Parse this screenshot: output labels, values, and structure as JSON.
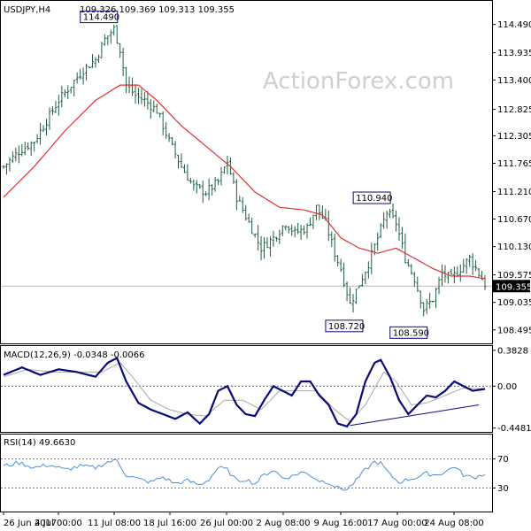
{
  "header": {
    "symbol": "USDJPY,H4",
    "ohlc": "109.326 109.369 109.313 109.355"
  },
  "watermark": "ActionForex.com",
  "colors": {
    "bars": "#1f5f3f",
    "ma": "#e03030",
    "macd_line": "#0a0a7a",
    "macd_signal": "#a8a8a8",
    "rsi": "#4a90d9",
    "price_line": "#b8b8b8",
    "label_box": "#0a0a7a"
  },
  "chart_data": [
    {
      "type": "ohlc",
      "panel": "price",
      "symbol": "USDJPY,H4",
      "ylim": [
        108.3,
        114.9
      ],
      "yticks": [
        "114.490",
        "113.935",
        "113.400",
        "112.825",
        "112.305",
        "111.765",
        "111.210",
        "110.670",
        "110.130",
        "109.575",
        "109.035",
        "108.495"
      ],
      "current_price": "109.355",
      "x_tick_labels": [
        "26 Jun 2017",
        "4 Jul 00:00",
        "11 Jul 08:00",
        "18 Jul 16:00",
        "26 Jul 00:00",
        "2 Aug 08:00",
        "9 Aug 16:00",
        "17 Aug 00:00",
        "24 Aug 08:00"
      ],
      "anchors_close": [
        [
          0,
          111.7
        ],
        [
          5,
          112.0
        ],
        [
          10,
          112.2
        ],
        [
          14,
          112.6
        ],
        [
          18,
          113.0
        ],
        [
          22,
          113.3
        ],
        [
          26,
          113.6
        ],
        [
          30,
          113.8
        ],
        [
          33,
          114.2
        ],
        [
          36,
          114.4
        ],
        [
          38,
          114.0
        ],
        [
          40,
          113.3
        ],
        [
          43,
          113.1
        ],
        [
          46,
          113.0
        ],
        [
          50,
          112.8
        ],
        [
          54,
          112.2
        ],
        [
          58,
          111.7
        ],
        [
          62,
          111.3
        ],
        [
          66,
          111.2
        ],
        [
          70,
          111.4
        ],
        [
          73,
          111.8
        ],
        [
          76,
          111.1
        ],
        [
          80,
          110.6
        ],
        [
          84,
          110.1
        ],
        [
          88,
          110.3
        ],
        [
          92,
          110.6
        ],
        [
          95,
          110.4
        ],
        [
          99,
          110.5
        ],
        [
          102,
          110.9
        ],
        [
          105,
          110.6
        ],
        [
          108,
          110.0
        ],
        [
          110,
          109.7
        ],
        [
          113,
          109.0
        ],
        [
          116,
          109.4
        ],
        [
          119,
          109.8
        ],
        [
          122,
          110.3
        ],
        [
          125,
          110.8
        ],
        [
          128,
          110.6
        ],
        [
          131,
          109.9
        ],
        [
          134,
          109.5
        ],
        [
          137,
          108.9
        ],
        [
          140,
          109.1
        ],
        [
          143,
          109.6
        ],
        [
          146,
          109.5
        ],
        [
          149,
          109.7
        ],
        [
          152,
          109.9
        ],
        [
          155,
          109.6
        ],
        [
          157,
          109.4
        ]
      ],
      "series": [
        {
          "name": "",
          "kind": "moving_average",
          "anchors": [
            [
              0,
              111.1
            ],
            [
              10,
              111.7
            ],
            [
              20,
              112.4
            ],
            [
              30,
              113.0
            ],
            [
              38,
              113.3
            ],
            [
              44,
              113.3
            ],
            [
              50,
              113.0
            ],
            [
              58,
              112.5
            ],
            [
              66,
              112.1
            ],
            [
              74,
              111.7
            ],
            [
              82,
              111.2
            ],
            [
              90,
              110.9
            ],
            [
              98,
              110.85
            ],
            [
              104,
              110.75
            ],
            [
              110,
              110.3
            ],
            [
              116,
              110.1
            ],
            [
              122,
              110.0
            ],
            [
              128,
              110.1
            ],
            [
              134,
              109.9
            ],
            [
              140,
              109.7
            ],
            [
              146,
              109.55
            ],
            [
              152,
              109.55
            ],
            [
              157,
              109.5
            ]
          ]
        }
      ],
      "annotations": [
        {
          "text": "114.490",
          "x": 36,
          "price": 114.49,
          "pos": "above"
        },
        {
          "text": "110.940",
          "x": 125,
          "price": 110.94,
          "pos": "above"
        },
        {
          "text": "108.720",
          "x": 116,
          "price": 108.72,
          "pos": "below"
        },
        {
          "text": "108.590",
          "x": 137,
          "price": 108.59,
          "pos": "below"
        }
      ]
    },
    {
      "type": "line",
      "panel": "macd",
      "label": "MACD(12,26,9) -0.0348 -0.0066",
      "ylim": [
        -0.47,
        0.4
      ],
      "yticks": [
        "0.3828",
        "0.00",
        "-0.4481"
      ],
      "series": [
        {
          "name": "",
          "kind": "macd",
          "anchors": [
            [
              0,
              0.12
            ],
            [
              6,
              0.2
            ],
            [
              12,
              0.12
            ],
            [
              18,
              0.18
            ],
            [
              24,
              0.15
            ],
            [
              30,
              0.1
            ],
            [
              34,
              0.25
            ],
            [
              37,
              0.3
            ],
            [
              40,
              0.05
            ],
            [
              44,
              -0.18
            ],
            [
              48,
              -0.25
            ],
            [
              52,
              -0.3
            ],
            [
              56,
              -0.35
            ],
            [
              60,
              -0.28
            ],
            [
              64,
              -0.4
            ],
            [
              67,
              -0.3
            ],
            [
              70,
              -0.05
            ],
            [
              73,
              0.0
            ],
            [
              76,
              -0.2
            ],
            [
              79,
              -0.3
            ],
            [
              82,
              -0.32
            ],
            [
              85,
              -0.15
            ],
            [
              88,
              0.0
            ],
            [
              91,
              -0.05
            ],
            [
              94,
              -0.1
            ],
            [
              97,
              0.05
            ],
            [
              100,
              0.05
            ],
            [
              103,
              -0.1
            ],
            [
              106,
              -0.2
            ],
            [
              109,
              -0.4
            ],
            [
              112,
              -0.43
            ],
            [
              115,
              -0.3
            ],
            [
              118,
              0.05
            ],
            [
              121,
              0.25
            ],
            [
              123,
              0.28
            ],
            [
              126,
              0.1
            ],
            [
              129,
              -0.15
            ],
            [
              132,
              -0.3
            ],
            [
              135,
              -0.2
            ],
            [
              138,
              -0.1
            ],
            [
              141,
              -0.12
            ],
            [
              144,
              -0.05
            ],
            [
              147,
              0.05
            ],
            [
              150,
              0.0
            ],
            [
              153,
              -0.05
            ],
            [
              157,
              -0.03
            ]
          ]
        },
        {
          "name": "",
          "kind": "signal",
          "anchors": [
            [
              0,
              0.1
            ],
            [
              8,
              0.18
            ],
            [
              16,
              0.15
            ],
            [
              24,
              0.15
            ],
            [
              32,
              0.15
            ],
            [
              38,
              0.25
            ],
            [
              42,
              0.1
            ],
            [
              48,
              -0.15
            ],
            [
              54,
              -0.25
            ],
            [
              60,
              -0.3
            ],
            [
              66,
              -0.32
            ],
            [
              72,
              -0.15
            ],
            [
              78,
              -0.15
            ],
            [
              84,
              -0.25
            ],
            [
              90,
              -0.05
            ],
            [
              96,
              -0.05
            ],
            [
              102,
              -0.05
            ],
            [
              108,
              -0.25
            ],
            [
              113,
              -0.38
            ],
            [
              118,
              -0.2
            ],
            [
              124,
              0.15
            ],
            [
              128,
              0.05
            ],
            [
              133,
              -0.2
            ],
            [
              138,
              -0.18
            ],
            [
              144,
              -0.1
            ],
            [
              150,
              -0.02
            ],
            [
              157,
              -0.03
            ]
          ]
        }
      ],
      "trendline": [
        [
          113,
          -0.42
        ],
        [
          155,
          -0.2
        ]
      ]
    },
    {
      "type": "line",
      "panel": "rsi",
      "label": "RSI(14) 49.6630",
      "ylim": [
        0,
        100
      ],
      "yticks": [
        "70",
        "30"
      ],
      "levels": [
        70,
        30
      ],
      "series": [
        {
          "name": "",
          "kind": "rsi",
          "anchors": [
            [
              0,
              60
            ],
            [
              5,
              65
            ],
            [
              10,
              58
            ],
            [
              15,
              62
            ],
            [
              20,
              55
            ],
            [
              25,
              60
            ],
            [
              30,
              58
            ],
            [
              34,
              66
            ],
            [
              37,
              68
            ],
            [
              40,
              48
            ],
            [
              44,
              42
            ],
            [
              48,
              38
            ],
            [
              52,
              45
            ],
            [
              56,
              36
            ],
            [
              60,
              40
            ],
            [
              64,
              34
            ],
            [
              67,
              42
            ],
            [
              70,
              58
            ],
            [
              73,
              55
            ],
            [
              76,
              40
            ],
            [
              79,
              42
            ],
            [
              82,
              36
            ],
            [
              85,
              48
            ],
            [
              88,
              55
            ],
            [
              91,
              44
            ],
            [
              94,
              46
            ],
            [
              97,
              52
            ],
            [
              100,
              48
            ],
            [
              103,
              40
            ],
            [
              106,
              38
            ],
            [
              109,
              30
            ],
            [
              112,
              28
            ],
            [
              115,
              40
            ],
            [
              118,
              55
            ],
            [
              121,
              66
            ],
            [
              123,
              64
            ],
            [
              126,
              48
            ],
            [
              129,
              38
            ],
            [
              132,
              42
            ],
            [
              135,
              45
            ],
            [
              138,
              50
            ],
            [
              141,
              48
            ],
            [
              144,
              52
            ],
            [
              147,
              60
            ],
            [
              150,
              48
            ],
            [
              153,
              44
            ],
            [
              157,
              50
            ]
          ]
        }
      ]
    }
  ]
}
